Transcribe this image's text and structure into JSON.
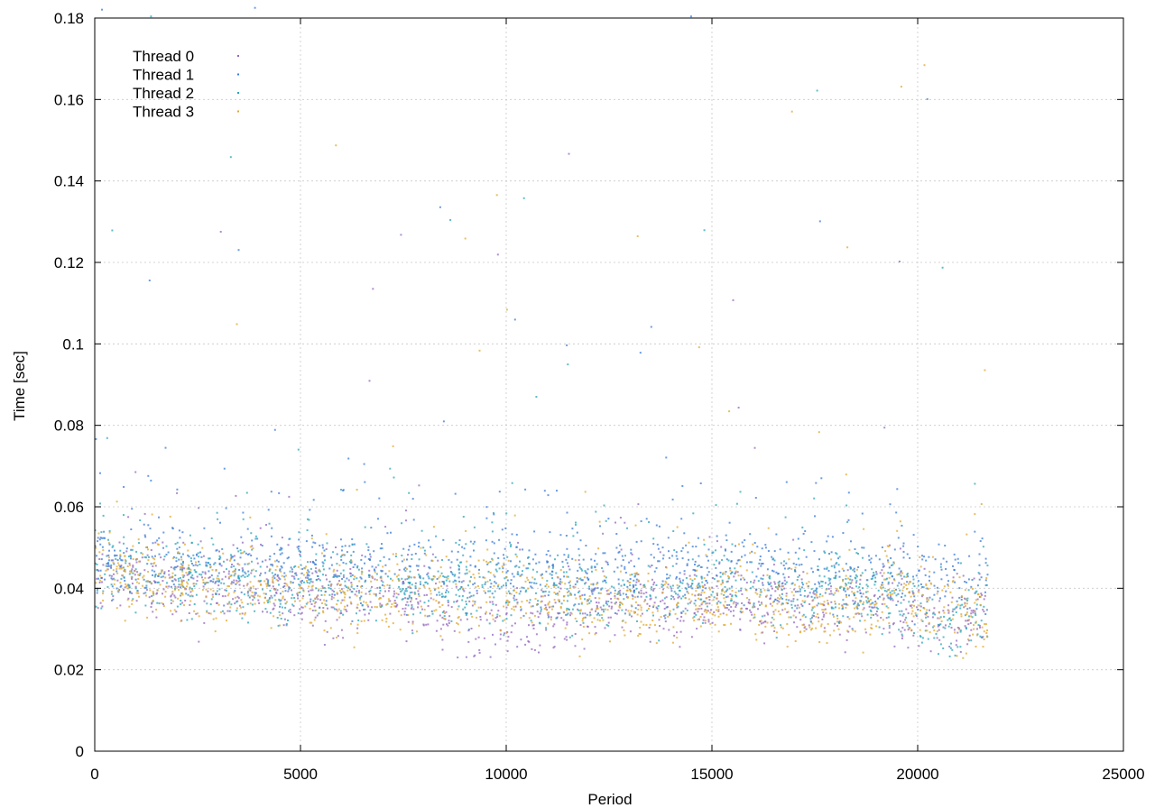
{
  "chart_data": {
    "type": "scatter",
    "xlabel": "Period",
    "ylabel": "Time [sec]",
    "xlim": [
      0,
      25000
    ],
    "ylim": [
      0,
      0.18
    ],
    "xticks": [
      0,
      5000,
      10000,
      15000,
      20000,
      25000
    ],
    "yticks": [
      0,
      0.02,
      0.04,
      0.06,
      0.08,
      0.1,
      0.12,
      0.14,
      0.16,
      0.18
    ],
    "xtick_labels": [
      "0",
      "5000",
      "10000",
      "15000",
      "20000",
      "25000"
    ],
    "ytick_labels": [
      "0",
      "0.02",
      "0.04",
      "0.06",
      "0.08",
      "0.1",
      "0.12",
      "0.14",
      "0.16",
      "0.18"
    ],
    "grid": true,
    "legend_position": "top-left",
    "point_range": [
      0,
      21700
    ],
    "series": [
      {
        "name": "Thread 0",
        "color": "#9467bd",
        "x": [
          200,
          1000,
          2000,
          3000,
          4000,
          5000,
          6000,
          7000,
          8000,
          8500,
          9000,
          9500,
          10000,
          10500,
          11000,
          11500,
          12000,
          12500,
          13000,
          14000,
          15000,
          16000,
          17000,
          18000,
          19000,
          20000,
          20500,
          21000,
          21700
        ],
        "y": [
          0.043,
          0.042,
          0.041,
          0.04,
          0.039,
          0.038,
          0.038,
          0.038,
          0.036,
          0.033,
          0.032,
          0.031,
          0.03,
          0.033,
          0.033,
          0.033,
          0.036,
          0.036,
          0.036,
          0.036,
          0.036,
          0.037,
          0.036,
          0.036,
          0.036,
          0.035,
          0.031,
          0.033,
          0.034
        ]
      },
      {
        "name": "Thread 1",
        "color": "#3a7bd5",
        "x": [
          200,
          1000,
          2000,
          3000,
          4000,
          5000,
          6000,
          7000,
          8000,
          9000,
          10000,
          11000,
          12000,
          13000,
          14000,
          15000,
          16000,
          17000,
          18000,
          19000,
          20000,
          20700,
          21000,
          21700
        ],
        "y": [
          0.046,
          0.046,
          0.046,
          0.045,
          0.045,
          0.045,
          0.045,
          0.045,
          0.045,
          0.044,
          0.044,
          0.044,
          0.043,
          0.043,
          0.043,
          0.044,
          0.044,
          0.043,
          0.043,
          0.043,
          0.043,
          0.042,
          0.043,
          0.041
        ]
      },
      {
        "name": "Thread 2",
        "color": "#2aa6b8",
        "x": [
          200,
          1000,
          2000,
          3000,
          4000,
          4500,
          5000,
          6000,
          7000,
          8000,
          9000,
          10000,
          11000,
          12000,
          13000,
          14000,
          15000,
          16000,
          17000,
          18000,
          19000,
          20000,
          20700,
          21000,
          21700
        ],
        "y": [
          0.044,
          0.043,
          0.042,
          0.042,
          0.042,
          0.035,
          0.041,
          0.041,
          0.041,
          0.041,
          0.04,
          0.04,
          0.04,
          0.039,
          0.039,
          0.039,
          0.04,
          0.04,
          0.04,
          0.039,
          0.039,
          0.035,
          0.029,
          0.033,
          0.036
        ]
      },
      {
        "name": "Thread 3",
        "color": "#e0a82e",
        "x": [
          200,
          1000,
          2000,
          3000,
          4000,
          5000,
          6000,
          7000,
          8000,
          9000,
          10000,
          11000,
          12000,
          13000,
          14000,
          15000,
          16000,
          17000,
          18000,
          19000,
          19500,
          20000,
          21000,
          21700
        ],
        "y": [
          0.045,
          0.042,
          0.041,
          0.04,
          0.04,
          0.039,
          0.038,
          0.038,
          0.038,
          0.038,
          0.037,
          0.036,
          0.036,
          0.036,
          0.036,
          0.036,
          0.036,
          0.035,
          0.035,
          0.036,
          0.045,
          0.035,
          0.034,
          0.033
        ]
      }
    ]
  }
}
